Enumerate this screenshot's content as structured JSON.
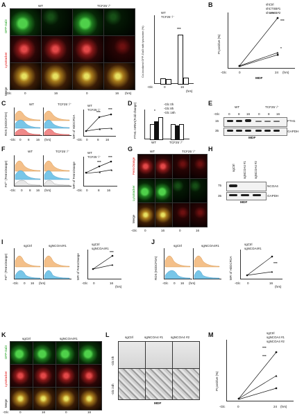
{
  "panels": {
    "A": {
      "letter": "A",
      "wt": "WT",
      "ko": "TCF25⁻/⁻",
      "row1": "GFP-Gal3",
      "row2": "Lysotracker",
      "row3": "Merge",
      "glc": "-Glc",
      "t0": "0",
      "t16": "16",
      "hrs": "(hrs)",
      "ylabel": "Co-localized GFP-Gal3 with lysosome (%)",
      "leg_wt": "WT",
      "leg_ko": "TCF25⁻/⁻",
      "sig": "***"
    },
    "B": {
      "letter": "B",
      "ylabel": "PI positive (%)",
      "leg1": "shCtrl",
      "leg2": "shCTSB#1",
      "leg3": "shCTSB#2",
      "glc": "-Glc",
      "t0": "0",
      "t24": "24",
      "hrs": "(hrs)",
      "caption": "MDF",
      "sig1": "***",
      "sig2": "***",
      "sig3": "*"
    },
    "C": {
      "letter": "C",
      "wt": "WT",
      "ko": "TCF25⁻/⁻",
      "ylabel_flow": "ROS (H2DCFDA)",
      "ylabel_bar": "MFI of H2DCFDA",
      "leg_wt": "WT",
      "leg_ko": "TCF25⁻/⁻",
      "glc": "-Glc",
      "t0": "0",
      "t8": "8",
      "t16": "16",
      "hrs": "(hrs)",
      "sig": "***"
    },
    "D": {
      "letter": "D",
      "ylabel": "FTH1 mRNA(Fold change)",
      "leg1": "-Glc 0h",
      "leg2": "-Glc 8h",
      "leg3": "-Glc 16h",
      "x1": "WT",
      "x2": "TCF25⁻/⁻",
      "sig": "*"
    },
    "E": {
      "letter": "E",
      "wt": "WT",
      "ko": "TCF25⁻/⁻",
      "glc": "-Glc",
      "t0": "0",
      "t8": "8",
      "t16": "16",
      "m1": "15",
      "m2": "35",
      "prot1": "FTH1",
      "prot2": "GAPDH",
      "caption": "MDF"
    },
    "F": {
      "letter": "F",
      "wt": "WT",
      "ko": "TCF25⁻/⁻",
      "ylabel_flow": "Fe²⁺ (FerroOrange)",
      "ylabel_bar": "MFI of FerroOrange",
      "leg_wt": "WT",
      "leg_ko": "TCF25⁻/⁻",
      "glc": "-Glc",
      "t0": "0",
      "t8": "8",
      "t16": "16",
      "hrs": "(hrs)",
      "sig": "***"
    },
    "G": {
      "letter": "G",
      "wt": "WT",
      "ko": "TCF25⁻/⁻",
      "row1": "FerroOrange",
      "row2": "Lysotracker",
      "row3": "Merge",
      "glc": "-Glc",
      "t0": "0",
      "t16": "16"
    },
    "H": {
      "letter": "H",
      "l1": "sgCtrl",
      "l2": "sgNCOA4 #1",
      "l3": "sgNCOA4 #2",
      "m1": "75",
      "m2": "35",
      "prot1": "NCOA4",
      "prot2": "GAPDH",
      "caption": "MDF"
    },
    "I": {
      "letter": "I",
      "c1": "sgCtrl",
      "c2": "sgNCOA4#1",
      "ylabel_flow": "Fe²⁺ (FerroOrange)",
      "ylabel_bar": "MFI of FerroOrange",
      "leg1": "sgCtrl",
      "leg2": "sgNCOA4#1",
      "glc": "-Glc",
      "t0": "0",
      "t16": "16",
      "hrs": "(hrs)",
      "sig": "***"
    },
    "J": {
      "letter": "J",
      "c1": "sgCtrl",
      "c2": "sgNCOA4#1",
      "ylabel_flow": "ROS (H2DCFDA)",
      "ylabel_bar": "MFI of H2DCFDA",
      "leg1": "sgCtrl",
      "leg2": "sgNCOA4#1",
      "glc": "-Glc",
      "t0": "0",
      "t16": "16",
      "hrs": "(hrs)",
      "sig": "***"
    },
    "K": {
      "letter": "K",
      "c1": "sgCtrl",
      "c2": "sgNCOA4#1",
      "row1": "GFP-Gal3",
      "row2": "Lysotracker",
      "row3": "Merge",
      "glc": "-Glc",
      "t0": "0",
      "t16": "16"
    },
    "L": {
      "letter": "L",
      "c1": "sgCtrl",
      "c2": "sgNCOA4 #1",
      "c3": "sgNCOA4 #2",
      "r1": "-Glc 0h",
      "r2": "-Glc 24h",
      "caption": "MDF"
    },
    "M": {
      "letter": "M",
      "ylabel": "PI positive (%)",
      "leg1": "sgCtrl",
      "leg2": "sgNCOA4 #1",
      "leg3": "sgNCOA4 #2",
      "glc": "-Glc",
      "t0": "0",
      "t24": "24",
      "hrs": "(hrs)",
      "sig1": "***",
      "sig2": "***"
    }
  },
  "chart_data": [
    {
      "panel": "A",
      "type": "bar",
      "categories": [
        "0",
        "16"
      ],
      "series": [
        {
          "name": "WT",
          "values": [
            7,
            72
          ]
        },
        {
          "name": "TCF25⁻/⁻",
          "values": [
            6,
            8
          ]
        }
      ],
      "ylabel": "Co-localized GFP-Gal3 with lysosome (%)",
      "ylim": [
        0,
        100
      ],
      "yticks": [
        0,
        20,
        40,
        60,
        80,
        100
      ]
    },
    {
      "panel": "B",
      "type": "line",
      "categories": [
        "0",
        "24"
      ],
      "series": [
        {
          "name": "shCtrl",
          "values": [
            2,
            92
          ]
        },
        {
          "name": "shCTSB#1",
          "values": [
            3,
            27
          ]
        },
        {
          "name": "shCTSB#2",
          "values": [
            2,
            24
          ]
        }
      ],
      "ylabel": "PI positive (%)",
      "ylim": [
        0,
        100
      ],
      "yticks": [
        0,
        20,
        40,
        60,
        80,
        100
      ]
    },
    {
      "panel": "C",
      "type": "line",
      "categories": [
        "0",
        "8",
        "16"
      ],
      "series": [
        {
          "name": "WT",
          "values": [
            150,
            600,
            650
          ]
        },
        {
          "name": "TCF25⁻/⁻",
          "values": [
            150,
            220,
            230
          ]
        }
      ],
      "ylabel": "MFI of H2DCFDA",
      "ylim": [
        0,
        800
      ],
      "yticks": [
        0,
        200,
        400,
        600,
        800
      ]
    },
    {
      "panel": "D",
      "type": "bar",
      "categories": [
        "WT",
        "TCF25⁻/⁻"
      ],
      "series": [
        {
          "name": "-Glc 0h",
          "values": [
            1.0,
            1.0
          ]
        },
        {
          "name": "-Glc 8h",
          "values": [
            1.2,
            0.9
          ]
        },
        {
          "name": "-Glc 16h",
          "values": [
            1.5,
            1.0
          ]
        }
      ],
      "ylabel": "FTH1 mRNA(Fold change)",
      "ylim": [
        0,
        2.0
      ],
      "yticks": [
        0,
        0.5,
        1.0,
        1.5,
        2.0
      ]
    },
    {
      "panel": "F",
      "type": "line",
      "categories": [
        "0",
        "8",
        "16"
      ],
      "series": [
        {
          "name": "WT",
          "values": [
            110,
            155,
            195
          ]
        },
        {
          "name": "TCF25⁻/⁻",
          "values": [
            105,
            115,
            130
          ]
        }
      ],
      "ylabel": "MFI of FerroOrange",
      "ylim": [
        0,
        250
      ],
      "yticks": [
        0,
        50,
        100,
        150,
        200,
        250
      ]
    },
    {
      "panel": "I",
      "type": "line",
      "categories": [
        "0",
        "16"
      ],
      "series": [
        {
          "name": "sgCtrl",
          "values": [
            85,
            195
          ]
        },
        {
          "name": "sgNCOA4#1",
          "values": [
            85,
            125
          ]
        }
      ],
      "ylabel": "MFI of FerroOrange",
      "ylim": [
        0,
        250
      ],
      "yticks": [
        0,
        50,
        100,
        150,
        200,
        250
      ]
    },
    {
      "panel": "J",
      "type": "line",
      "categories": [
        "0",
        "16"
      ],
      "series": [
        {
          "name": "sgCtrl",
          "values": [
            120,
            750
          ]
        },
        {
          "name": "sgNCOA4#1",
          "values": [
            115,
            245
          ]
        }
      ],
      "ylabel": "MFI of H2DCFDA",
      "ylim": [
        0,
        1000
      ],
      "yticks": [
        0,
        200,
        400,
        600,
        800,
        1000
      ]
    },
    {
      "panel": "M",
      "type": "line",
      "categories": [
        "0",
        "24"
      ],
      "series": [
        {
          "name": "sgCtrl",
          "values": [
            2,
            80
          ]
        },
        {
          "name": "sgNCOA4 #1",
          "values": [
            3,
            40
          ]
        },
        {
          "name": "sgNCOA4 #2",
          "values": [
            2,
            20
          ]
        }
      ],
      "ylabel": "PI positive (%)",
      "ylim": [
        0,
        100
      ],
      "yticks": [
        0,
        20,
        40,
        60,
        80,
        100
      ]
    }
  ]
}
